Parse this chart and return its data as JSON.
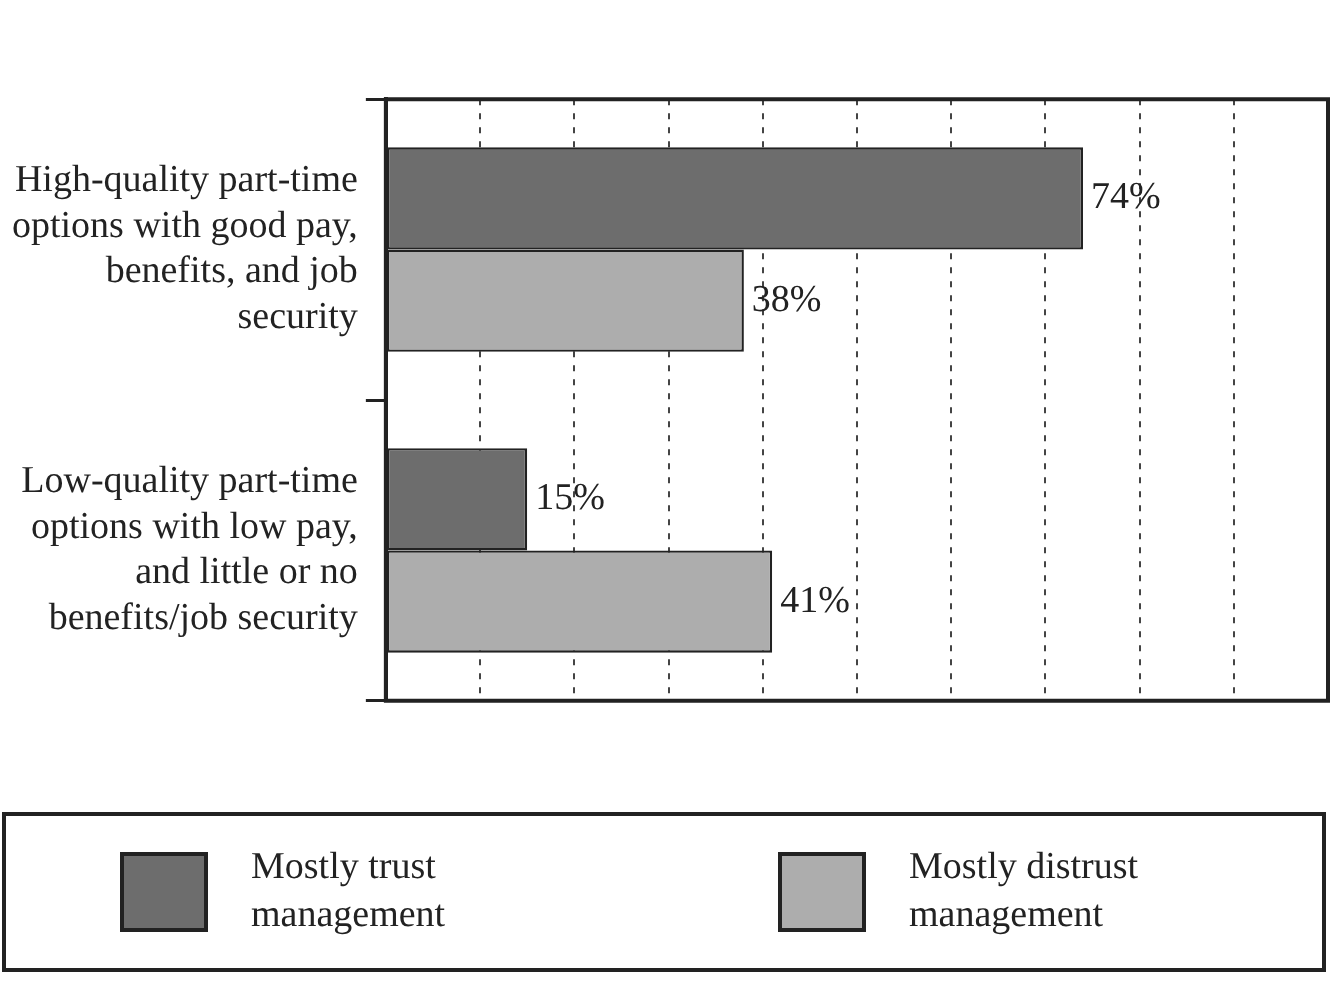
{
  "chart_data": {
    "type": "bar",
    "orientation": "horizontal",
    "categories": [
      "High-quality part-time options with good pay, benefits, and job security",
      "Low-quality part-time options with low pay, and little or no benefits/job security"
    ],
    "series": [
      {
        "name": "Mostly trust management",
        "color": "#6d6d6d",
        "values": [
          74,
          15
        ],
        "value_labels": [
          "74%",
          "15%"
        ]
      },
      {
        "name": "Mostly distrust management",
        "color": "#adadad",
        "values": [
          38,
          41
        ],
        "value_labels": [
          "38%",
          "41%"
        ]
      }
    ],
    "xlim": [
      0,
      100
    ],
    "tick_labels": "y",
    "grid": "x",
    "legend": "bottom"
  }
}
